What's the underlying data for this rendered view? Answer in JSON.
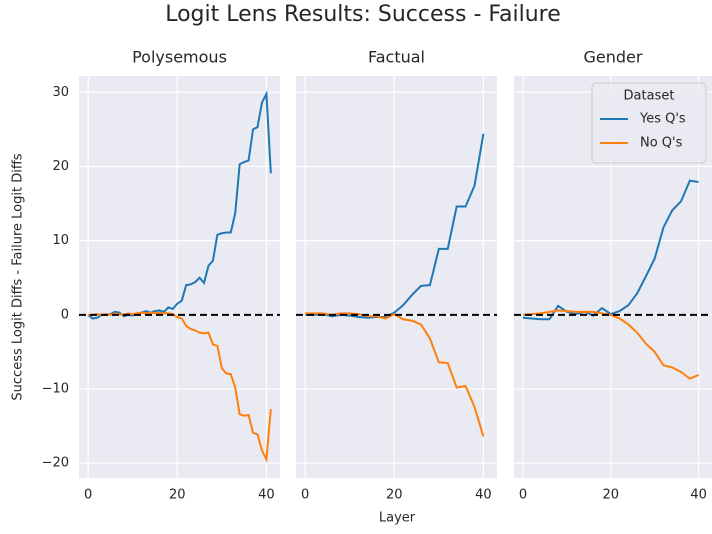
{
  "title": "Logit Lens Results: Success - Failure",
  "xlabel": "Layer",
  "ylabel": "Success Logit Diffs - Failure Logit Diffs",
  "chart_data": [
    {
      "type": "line",
      "title": "Polysemous",
      "grid": true,
      "x": [
        0,
        1,
        2,
        3,
        4,
        5,
        6,
        7,
        8,
        9,
        10,
        11,
        12,
        13,
        14,
        15,
        16,
        17,
        18,
        19,
        20,
        21,
        22,
        23,
        24,
        25,
        26,
        27,
        28,
        29,
        30,
        31,
        32,
        33,
        34,
        35,
        36,
        37,
        38,
        39,
        40,
        41
      ],
      "series": [
        {
          "color": "#1f77b4",
          "values": [
            0,
            -0.5,
            -0.4,
            0,
            0,
            0.1,
            0.4,
            0.3,
            -0.2,
            0,
            -0.1,
            0.2,
            0.3,
            0.5,
            0.3,
            0.5,
            0.6,
            0.4,
            1.0,
            0.8,
            1.5,
            1.9,
            4.0,
            4.1,
            4.4,
            5.0,
            4.3,
            6.6,
            7.3,
            10.8,
            11.0,
            11.1,
            11.1,
            13.7,
            20.3,
            20.6,
            20.8,
            25.0,
            25.3,
            28.6,
            29.8,
            19.1
          ]
        },
        {
          "color": "#ff7f0e",
          "values": [
            0,
            0,
            0.1,
            0,
            0.1,
            0,
            0.2,
            0.1,
            0,
            0.2,
            0.1,
            0.2,
            0.3,
            0.2,
            0.3,
            0.2,
            0.3,
            0.2,
            0.2,
            0.1,
            -0.3,
            -0.5,
            -1.5,
            -1.9,
            -2.1,
            -2.4,
            -2.5,
            -2.4,
            -4.0,
            -4.2,
            -7.2,
            -7.9,
            -8.0,
            -9.8,
            -13.4,
            -13.6,
            -13.5,
            -15.9,
            -16.1,
            -18.3,
            -19.5,
            -12.7
          ]
        }
      ],
      "reference_line": 0,
      "xlim": [
        -2.05,
        43.05
      ],
      "ylim": [
        -22,
        32.2
      ],
      "xticks": [
        0,
        20,
        40
      ],
      "yticks": [
        {
          "value": -20,
          "label": "−20"
        },
        {
          "value": -10,
          "label": "−10"
        },
        0,
        10,
        20,
        30
      ]
    },
    {
      "type": "line",
      "title": "Factual",
      "grid": true,
      "x": [
        0,
        2,
        4,
        6,
        8,
        10,
        12,
        14,
        16,
        18,
        20,
        22,
        24,
        26,
        28,
        30,
        32,
        34,
        36,
        38,
        40
      ],
      "series": [
        {
          "color": "#1f77b4",
          "values": [
            0,
            0,
            0.1,
            -0.2,
            0,
            -0.1,
            -0.3,
            -0.4,
            -0.3,
            -0.3,
            0.3,
            1.3,
            2.7,
            3.9,
            4.0,
            8.9,
            8.9,
            14.6,
            14.6,
            17.4,
            24.4
          ]
        },
        {
          "color": "#ff7f0e",
          "values": [
            0.2,
            0.2,
            0.2,
            0,
            0.2,
            0.2,
            0.1,
            -0.2,
            -0.2,
            -0.5,
            0.1,
            -0.6,
            -0.8,
            -1.3,
            -3.2,
            -6.4,
            -6.5,
            -9.8,
            -9.6,
            -12.4,
            -16.4
          ]
        }
      ],
      "reference_line": 0,
      "xlim": [
        -2.05,
        43.05
      ],
      "ylim": [
        -22,
        32.2
      ],
      "xticks": [
        0,
        20,
        40
      ],
      "yticks": [
        -20,
        -10,
        0,
        10,
        20,
        30
      ]
    },
    {
      "type": "line",
      "title": "Gender",
      "grid": true,
      "x": [
        0,
        2,
        4,
        6,
        8,
        10,
        12,
        14,
        16,
        18,
        20,
        22,
        24,
        26,
        28,
        30,
        32,
        34,
        36,
        38,
        40
      ],
      "series": [
        {
          "name": "Yes Q's",
          "color": "#1f77b4",
          "values": [
            -0.4,
            -0.5,
            -0.6,
            -0.6,
            1.2,
            0.4,
            0.1,
            0.4,
            -0.1,
            0.9,
            0.1,
            0.5,
            1.3,
            2.9,
            5.2,
            7.6,
            11.8,
            14.1,
            15.3,
            18.1,
            17.9
          ]
        },
        {
          "name": "No Q's",
          "color": "#ff7f0e",
          "values": [
            0,
            0.1,
            0.2,
            0.4,
            0.6,
            0.5,
            0.4,
            0.4,
            0.4,
            0.2,
            0,
            -0.5,
            -1.3,
            -2.4,
            -3.9,
            -5.0,
            -6.8,
            -7.1,
            -7.7,
            -8.6,
            -8.1
          ]
        }
      ],
      "reference_line": 0,
      "legend": "upper right",
      "legend_title": "Dataset",
      "xlim": [
        -2.05,
        43.05
      ],
      "ylim": [
        -22,
        32.2
      ],
      "xticks": [
        0,
        20,
        40
      ],
      "yticks": [
        -20,
        -10,
        0,
        10,
        20,
        30
      ]
    }
  ]
}
